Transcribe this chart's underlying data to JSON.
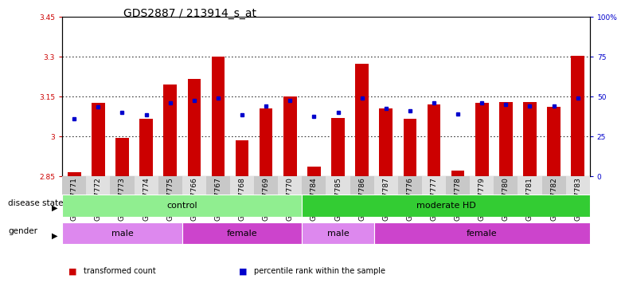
{
  "title": "GDS2887 / 213914_s_at",
  "samples": [
    "GSM217771",
    "GSM217772",
    "GSM217773",
    "GSM217774",
    "GSM217775",
    "GSM217766",
    "GSM217767",
    "GSM217768",
    "GSM217769",
    "GSM217770",
    "GSM217784",
    "GSM217785",
    "GSM217786",
    "GSM217787",
    "GSM217776",
    "GSM217777",
    "GSM217778",
    "GSM217779",
    "GSM217780",
    "GSM217781",
    "GSM217782",
    "GSM217783"
  ],
  "bar_values": [
    2.865,
    3.125,
    2.995,
    3.065,
    3.195,
    3.215,
    3.3,
    2.985,
    3.105,
    3.15,
    2.885,
    3.07,
    3.275,
    3.105,
    3.065,
    3.12,
    2.87,
    3.125,
    3.13,
    3.13,
    3.11,
    3.305
  ],
  "dot_values": [
    3.065,
    3.11,
    3.09,
    3.08,
    3.125,
    3.135,
    3.145,
    3.08,
    3.115,
    3.135,
    3.075,
    3.09,
    3.145,
    3.105,
    3.095,
    3.125,
    3.085,
    3.125,
    3.12,
    3.115,
    3.115,
    3.145
  ],
  "bar_bottom": 2.85,
  "ylim_min": 2.85,
  "ylim_max": 3.45,
  "yticks_left": [
    2.85,
    3.0,
    3.15,
    3.3,
    3.45
  ],
  "ytick_labels_left": [
    "2.85",
    "3",
    "3.15",
    "3.3",
    "3.45"
  ],
  "yticks_right_pct": [
    0,
    25,
    50,
    75,
    100
  ],
  "ytick_labels_right": [
    "0",
    "25",
    "50",
    "75",
    "100%"
  ],
  "grid_lines": [
    3.0,
    3.15,
    3.3
  ],
  "bar_color": "#cc0000",
  "dot_color": "#0000cc",
  "disease_groups": [
    {
      "label": "control",
      "start": 0,
      "end": 10,
      "color": "#90ee90"
    },
    {
      "label": "moderate HD",
      "start": 10,
      "end": 22,
      "color": "#33cc33"
    }
  ],
  "gender_groups": [
    {
      "label": "male",
      "start": 0,
      "end": 5,
      "color": "#dd88ee"
    },
    {
      "label": "female",
      "start": 5,
      "end": 10,
      "color": "#cc44cc"
    },
    {
      "label": "male",
      "start": 10,
      "end": 13,
      "color": "#dd88ee"
    },
    {
      "label": "female",
      "start": 13,
      "end": 22,
      "color": "#cc44cc"
    }
  ],
  "legend_items": [
    {
      "label": "transformed count",
      "color": "#cc0000"
    },
    {
      "label": "percentile rank within the sample",
      "color": "#0000cc"
    }
  ],
  "disease_label": "disease state",
  "gender_label": "gender",
  "bar_width": 0.55,
  "title_fontsize": 10,
  "tick_fontsize": 6.5,
  "label_fontsize": 8,
  "bar_color_left": "#cc0000",
  "bar_color_right": "#0000cc",
  "xtick_bg_even": "#c8c8c8",
  "xtick_bg_odd": "#e0e0e0"
}
